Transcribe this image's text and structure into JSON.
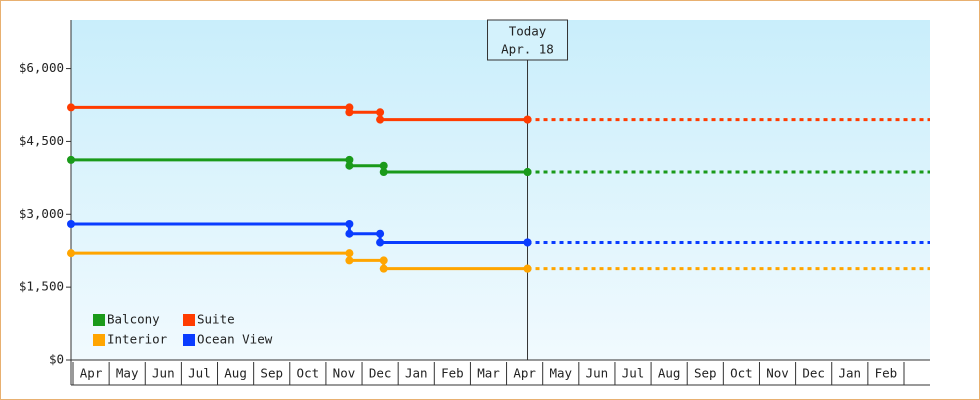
{
  "chart_data": {
    "type": "step-line",
    "categories": [
      "Apr",
      "May",
      "Jun",
      "Jul",
      "Aug",
      "Sep",
      "Oct",
      "Nov",
      "Dec",
      "Jan",
      "Feb",
      "Mar",
      "Apr",
      "May",
      "Jun",
      "Jul",
      "Aug",
      "Sep",
      "Oct",
      "Nov",
      "Dec",
      "Jan",
      "Feb"
    ],
    "xlim": [
      0,
      23
    ],
    "ylim": [
      0,
      7000
    ],
    "yticks": [
      {
        "value": 0,
        "label": "$0"
      },
      {
        "value": 1500,
        "label": "$1,500"
      },
      {
        "value": 3000,
        "label": "$3,000"
      },
      {
        "value": 4500,
        "label": "$4,500"
      },
      {
        "value": 6000,
        "label": "$6,000"
      }
    ],
    "today": {
      "label": [
        "Today",
        "Apr. 18"
      ],
      "x": 12.58
    },
    "legend": "bottom-left",
    "series": [
      {
        "name": "Balcony",
        "color": "#1a9a1a",
        "x": [
          0,
          7.65,
          8.6,
          12.58
        ],
        "values": [
          4120,
          4000,
          3870,
          3870
        ]
      },
      {
        "name": "Suite",
        "color": "#ff3c00",
        "x": [
          0,
          7.65,
          8.5,
          12.58
        ],
        "values": [
          5200,
          5100,
          4950,
          4950
        ]
      },
      {
        "name": "Interior",
        "color": "#ffa500",
        "x": [
          0,
          7.65,
          8.6,
          12.58
        ],
        "values": [
          2200,
          2050,
          1880,
          1880
        ]
      },
      {
        "name": "Ocean View",
        "color": "#0a3cff",
        "x": [
          0,
          7.65,
          8.5,
          12.58
        ],
        "values": [
          2800,
          2600,
          2420,
          2420
        ]
      }
    ]
  }
}
